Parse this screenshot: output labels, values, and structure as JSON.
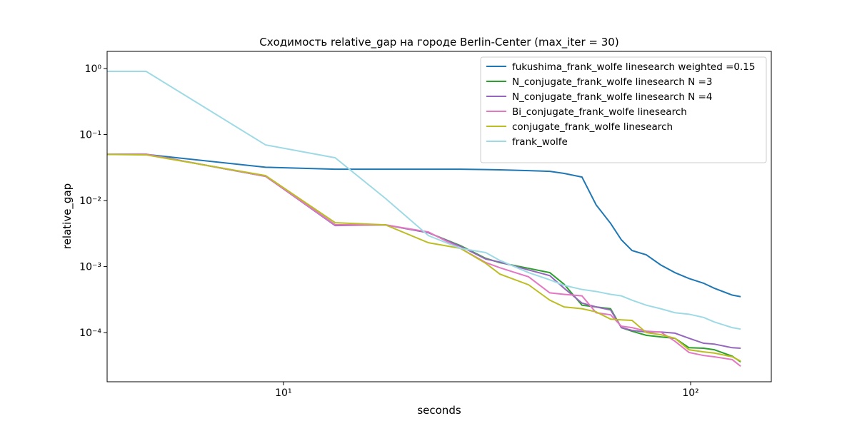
{
  "chart_data": {
    "type": "line",
    "title": "Сходимость relative_gap на городе Berlin-Center  (max_iter = 30)",
    "x_label": "seconds",
    "y_label": "relative_gap",
    "x_scale": "log",
    "y_scale": "log",
    "legend": "upper right",
    "xlim": [
      3.69,
      157.8
    ],
    "ylim": [
      1.8e-05,
      1.82
    ],
    "xticks": [
      {
        "value": 10,
        "label": "10¹"
      },
      {
        "value": 100,
        "label": "10²"
      }
    ],
    "yticks": [
      {
        "value": 0.0001,
        "label": "10⁻⁴"
      },
      {
        "value": 0.001,
        "label": "10⁻³"
      },
      {
        "value": 0.01,
        "label": "10⁻²"
      },
      {
        "value": 0.1,
        "label": "10⁻¹"
      },
      {
        "value": 1,
        "label": "10⁰"
      }
    ],
    "x": [
      3.69,
      4.6,
      9.04,
      13.4,
      17.8,
      22.7,
      27.2,
      31.4,
      34.0,
      40.0,
      45.1,
      48.9,
      54.1,
      58.6,
      63.6,
      67.6,
      71.8,
      77.8,
      84.4,
      91.5,
      99.1,
      107.6,
      114.3,
      126.5,
      132.7
    ],
    "series": [
      {
        "name": "fukushima_frank_wolfe linesearch weighted =0.15",
        "color": "#1f77b4",
        "values": [
          0.05,
          0.05,
          0.032,
          0.0299,
          0.0299,
          0.0299,
          0.0299,
          0.0295,
          0.0292,
          0.0284,
          0.0277,
          0.0258,
          0.0227,
          0.0086,
          0.00451,
          0.00254,
          0.00175,
          0.00151,
          0.00106,
          0.00081,
          0.00066,
          0.00056,
          0.00047,
          0.00037,
          0.00035
        ]
      },
      {
        "name": "N_conjugate_frank_wolfe linesearch N =3",
        "color": "#2ca02c",
        "values": [
          0.05,
          0.0504,
          0.0233,
          0.00429,
          0.00429,
          0.00326,
          0.00208,
          0.00133,
          0.00115,
          0.00094,
          0.00081,
          0.00054,
          0.00026,
          0.000245,
          0.00023,
          0.000119,
          0.000105,
          9.1e-05,
          8.6e-05,
          8.2e-05,
          5.9e-05,
          5.8e-05,
          5.5e-05,
          4.4e-05,
          3.6e-05
        ]
      },
      {
        "name": "N_conjugate_frank_wolfe linesearch N =4",
        "color": "#9467bd",
        "values": [
          0.05,
          0.0504,
          0.0233,
          0.00418,
          0.00429,
          0.00326,
          0.00203,
          0.0013,
          0.00117,
          0.00089,
          0.00073,
          0.00047,
          0.00028,
          0.000245,
          0.00022,
          0.000119,
          0.000108,
          0.000102,
          0.000102,
          9.8e-05,
          8.2e-05,
          6.9e-05,
          6.7e-05,
          5.9e-05,
          5.8e-05
        ]
      },
      {
        "name": "Bi_conjugate_frank_wolfe linesearch",
        "color": "#e377c2",
        "values": [
          0.05,
          0.0504,
          0.0233,
          0.00429,
          0.00429,
          0.00334,
          0.00189,
          0.00115,
          0.00096,
          0.0007,
          0.0004,
          0.00038,
          0.00036,
          0.0002,
          0.000186,
          0.000125,
          0.000119,
          0.000105,
          0.000102,
          7.4e-05,
          5e-05,
          4.5e-05,
          4.3e-05,
          3.9e-05,
          3.1e-05
        ]
      },
      {
        "name": "conjugate_frank_wolfe linesearch",
        "color": "#bcbd22",
        "values": [
          0.05,
          0.0492,
          0.0239,
          0.00462,
          0.00429,
          0.0023,
          0.00189,
          0.00112,
          0.00077,
          0.00053,
          0.00031,
          0.000245,
          0.00023,
          0.000206,
          0.00016,
          0.000156,
          0.000153,
          0.0001,
          9.3e-05,
          8.2e-05,
          5.5e-05,
          5.1e-05,
          4.9e-05,
          4.3e-05,
          3.7e-05
        ]
      },
      {
        "name": "frank_wolfe",
        "color": "#9edae5",
        "values": [
          0.906,
          0.906,
          0.0697,
          0.0445,
          0.0108,
          0.00295,
          0.00189,
          0.00163,
          0.00124,
          0.00081,
          0.00063,
          0.00052,
          0.00045,
          0.00042,
          0.00038,
          0.00036,
          0.00031,
          0.00026,
          0.00023,
          0.0002,
          0.00019,
          0.00017,
          0.000145,
          0.000119,
          0.000113
        ]
      }
    ]
  }
}
